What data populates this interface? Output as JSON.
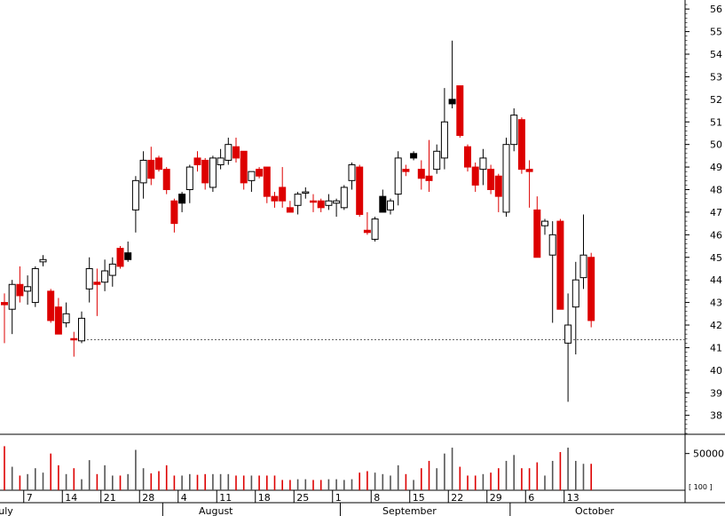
{
  "chart_data": {
    "type": "candlestick",
    "title": "",
    "price_axis": {
      "ticks": [
        38,
        39,
        40,
        41,
        42,
        43,
        44,
        45,
        46,
        47,
        48,
        49,
        50,
        51,
        52,
        53,
        54,
        55,
        56
      ],
      "range": [
        37.2,
        56.4
      ],
      "position": "right"
    },
    "volume_axis": {
      "tick_label": "50000",
      "tick_value": 50000,
      "unit_label": "[ 100 ]",
      "range": [
        0,
        75000
      ]
    },
    "reference_line": {
      "value": 41.35,
      "style": "dotted"
    },
    "x_tick_labels": [
      "7",
      "14",
      "21",
      "28",
      "4",
      "11",
      "18",
      "25",
      "1",
      "8",
      "15",
      "22",
      "29",
      "6",
      "13"
    ],
    "month_labels": [
      "July",
      "August",
      "September",
      "October"
    ],
    "up_color": "#ffffff",
    "down_color": "#dd0000",
    "alt_color": "#000000",
    "candles": [
      {
        "o": 43.0,
        "h": 43.4,
        "l": 41.2,
        "c": 42.9,
        "v": 60000,
        "color": "red"
      },
      {
        "o": 42.7,
        "h": 44.0,
        "l": 41.6,
        "c": 43.8,
        "v": 32000,
        "color": "white"
      },
      {
        "o": 43.8,
        "h": 44.6,
        "l": 43.0,
        "c": 43.3,
        "v": 20000,
        "color": "red"
      },
      {
        "o": 43.5,
        "h": 44.2,
        "l": 42.9,
        "c": 43.7,
        "v": 22000,
        "color": "white"
      },
      {
        "o": 43.0,
        "h": 44.6,
        "l": 42.8,
        "c": 44.5,
        "v": 30000,
        "color": "white"
      },
      {
        "o": 44.8,
        "h": 45.1,
        "l": 44.6,
        "c": 44.9,
        "v": 24000,
        "color": "white"
      },
      {
        "o": 43.5,
        "h": 43.6,
        "l": 42.1,
        "c": 42.2,
        "v": 50000,
        "color": "red"
      },
      {
        "o": 42.8,
        "h": 43.2,
        "l": 41.6,
        "c": 41.6,
        "v": 34000,
        "color": "red"
      },
      {
        "o": 42.1,
        "h": 43.0,
        "l": 41.9,
        "c": 42.5,
        "v": 22000,
        "color": "white"
      },
      {
        "o": 41.4,
        "h": 41.7,
        "l": 40.6,
        "c": 41.4,
        "v": 30000,
        "color": "red"
      },
      {
        "o": 41.3,
        "h": 42.6,
        "l": 41.2,
        "c": 42.3,
        "v": 15000,
        "color": "white"
      },
      {
        "o": 43.6,
        "h": 45.0,
        "l": 43.0,
        "c": 44.5,
        "v": 41000,
        "color": "white"
      },
      {
        "o": 43.9,
        "h": 44.5,
        "l": 42.4,
        "c": 43.8,
        "v": 22000,
        "color": "red"
      },
      {
        "o": 43.9,
        "h": 44.9,
        "l": 43.5,
        "c": 44.4,
        "v": 34000,
        "color": "white"
      },
      {
        "o": 44.2,
        "h": 45.0,
        "l": 43.7,
        "c": 44.7,
        "v": 20000,
        "color": "white"
      },
      {
        "o": 45.4,
        "h": 45.5,
        "l": 44.5,
        "c": 44.6,
        "v": 20000,
        "color": "red"
      },
      {
        "o": 45.2,
        "h": 45.7,
        "l": 44.8,
        "c": 44.9,
        "v": 22000,
        "color": "black"
      },
      {
        "o": 47.1,
        "h": 48.6,
        "l": 46.1,
        "c": 48.4,
        "v": 55000,
        "color": "white"
      },
      {
        "o": 48.3,
        "h": 49.7,
        "l": 47.6,
        "c": 49.3,
        "v": 30000,
        "color": "white"
      },
      {
        "o": 49.3,
        "h": 49.9,
        "l": 48.2,
        "c": 48.5,
        "v": 23000,
        "color": "red"
      },
      {
        "o": 49.4,
        "h": 49.5,
        "l": 48.8,
        "c": 48.9,
        "v": 26000,
        "color": "red"
      },
      {
        "o": 48.9,
        "h": 49.0,
        "l": 47.8,
        "c": 48.0,
        "v": 34000,
        "color": "red"
      },
      {
        "o": 47.5,
        "h": 47.6,
        "l": 46.1,
        "c": 46.5,
        "v": 20000,
        "color": "red"
      },
      {
        "o": 47.4,
        "h": 47.9,
        "l": 47.0,
        "c": 47.8,
        "v": 20000,
        "color": "black"
      },
      {
        "o": 48.0,
        "h": 49.1,
        "l": 47.4,
        "c": 49.0,
        "v": 22000,
        "color": "white"
      },
      {
        "o": 49.1,
        "h": 49.7,
        "l": 48.8,
        "c": 49.4,
        "v": 21000,
        "color": "red"
      },
      {
        "o": 48.3,
        "h": 49.4,
        "l": 48.0,
        "c": 49.3,
        "v": 22000,
        "color": "red"
      },
      {
        "o": 48.1,
        "h": 49.5,
        "l": 47.9,
        "c": 49.4,
        "v": 22000,
        "color": "white"
      },
      {
        "o": 49.4,
        "h": 49.8,
        "l": 48.9,
        "c": 49.1,
        "v": 22000,
        "color": "white"
      },
      {
        "o": 49.3,
        "h": 50.3,
        "l": 49.1,
        "c": 50.0,
        "v": 22000,
        "color": "white"
      },
      {
        "o": 49.9,
        "h": 50.3,
        "l": 49.2,
        "c": 49.4,
        "v": 20000,
        "color": "red"
      },
      {
        "o": 49.7,
        "h": 49.7,
        "l": 48.0,
        "c": 48.3,
        "v": 20000,
        "color": "red"
      },
      {
        "o": 48.4,
        "h": 48.7,
        "l": 47.9,
        "c": 48.8,
        "v": 20000,
        "color": "white"
      },
      {
        "o": 48.9,
        "h": 49.0,
        "l": 48.5,
        "c": 48.6,
        "v": 20000,
        "color": "red"
      },
      {
        "o": 49.0,
        "h": 49.0,
        "l": 47.4,
        "c": 47.7,
        "v": 20000,
        "color": "red"
      },
      {
        "o": 47.7,
        "h": 47.9,
        "l": 47.2,
        "c": 47.5,
        "v": 20000,
        "color": "red"
      },
      {
        "o": 48.1,
        "h": 49.0,
        "l": 47.2,
        "c": 47.5,
        "v": 14000,
        "color": "red"
      },
      {
        "o": 47.2,
        "h": 47.5,
        "l": 47.0,
        "c": 47.0,
        "v": 14000,
        "color": "red"
      },
      {
        "o": 47.3,
        "h": 47.9,
        "l": 46.9,
        "c": 47.8,
        "v": 15000,
        "color": "white"
      },
      {
        "o": 47.9,
        "h": 48.1,
        "l": 47.6,
        "c": 47.9,
        "v": 15000,
        "color": "white"
      },
      {
        "o": 47.5,
        "h": 47.8,
        "l": 47.0,
        "c": 47.5,
        "v": 14000,
        "color": "red"
      },
      {
        "o": 47.5,
        "h": 47.6,
        "l": 47.0,
        "c": 47.2,
        "v": 14000,
        "color": "red"
      },
      {
        "o": 47.3,
        "h": 47.8,
        "l": 47.1,
        "c": 47.5,
        "v": 15000,
        "color": "white"
      },
      {
        "o": 47.5,
        "h": 47.6,
        "l": 46.8,
        "c": 47.4,
        "v": 15000,
        "color": "white"
      },
      {
        "o": 47.2,
        "h": 48.2,
        "l": 47.1,
        "c": 48.1,
        "v": 14000,
        "color": "white"
      },
      {
        "o": 48.4,
        "h": 49.2,
        "l": 48.0,
        "c": 49.1,
        "v": 15000,
        "color": "white"
      },
      {
        "o": 49.0,
        "h": 49.1,
        "l": 46.8,
        "c": 46.9,
        "v": 24000,
        "color": "red"
      },
      {
        "o": 46.2,
        "h": 47.0,
        "l": 46.0,
        "c": 46.1,
        "v": 26000,
        "color": "red"
      },
      {
        "o": 45.8,
        "h": 46.8,
        "l": 45.7,
        "c": 46.7,
        "v": 24000,
        "color": "white"
      },
      {
        "o": 47.7,
        "h": 48.0,
        "l": 47.0,
        "c": 47.0,
        "v": 22000,
        "color": "black"
      },
      {
        "o": 47.1,
        "h": 47.6,
        "l": 46.9,
        "c": 47.5,
        "v": 20000,
        "color": "white"
      },
      {
        "o": 47.8,
        "h": 49.7,
        "l": 47.3,
        "c": 49.4,
        "v": 34000,
        "color": "white"
      },
      {
        "o": 48.9,
        "h": 49.1,
        "l": 48.6,
        "c": 48.8,
        "v": 22000,
        "color": "red"
      },
      {
        "o": 49.6,
        "h": 49.7,
        "l": 49.3,
        "c": 49.4,
        "v": 14000,
        "color": "black"
      },
      {
        "o": 48.9,
        "h": 49.3,
        "l": 48.0,
        "c": 48.5,
        "v": 30000,
        "color": "red"
      },
      {
        "o": 48.4,
        "h": 50.2,
        "l": 47.9,
        "c": 48.6,
        "v": 40000,
        "color": "red"
      },
      {
        "o": 48.9,
        "h": 50.0,
        "l": 48.7,
        "c": 49.7,
        "v": 30000,
        "color": "white"
      },
      {
        "o": 49.4,
        "h": 52.5,
        "l": 48.9,
        "c": 51.0,
        "v": 50000,
        "color": "white"
      },
      {
        "o": 52.0,
        "h": 54.6,
        "l": 51.6,
        "c": 51.8,
        "v": 58000,
        "color": "black"
      },
      {
        "o": 52.6,
        "h": 52.6,
        "l": 50.3,
        "c": 50.4,
        "v": 32000,
        "color": "red"
      },
      {
        "o": 49.9,
        "h": 50.0,
        "l": 48.8,
        "c": 49.0,
        "v": 20000,
        "color": "red"
      },
      {
        "o": 49.0,
        "h": 49.2,
        "l": 47.9,
        "c": 48.2,
        "v": 20000,
        "color": "red"
      },
      {
        "o": 48.9,
        "h": 49.8,
        "l": 48.2,
        "c": 49.4,
        "v": 22000,
        "color": "white"
      },
      {
        "o": 48.9,
        "h": 49.1,
        "l": 47.8,
        "c": 48.0,
        "v": 24000,
        "color": "red"
      },
      {
        "o": 48.6,
        "h": 48.7,
        "l": 47.0,
        "c": 47.7,
        "v": 30000,
        "color": "red"
      },
      {
        "o": 47.0,
        "h": 50.3,
        "l": 46.8,
        "c": 50.0,
        "v": 40000,
        "color": "white"
      },
      {
        "o": 50.0,
        "h": 51.6,
        "l": 49.7,
        "c": 51.3,
        "v": 48000,
        "color": "white"
      },
      {
        "o": 51.1,
        "h": 51.2,
        "l": 48.7,
        "c": 48.9,
        "v": 30000,
        "color": "red"
      },
      {
        "o": 48.9,
        "h": 49.3,
        "l": 47.2,
        "c": 48.8,
        "v": 30000,
        "color": "red"
      },
      {
        "o": 47.1,
        "h": 47.7,
        "l": 45.1,
        "c": 45.0,
        "v": 38000,
        "color": "red"
      },
      {
        "o": 46.4,
        "h": 46.7,
        "l": 46.0,
        "c": 46.6,
        "v": 20000,
        "color": "white"
      },
      {
        "o": 45.1,
        "h": 46.6,
        "l": 42.1,
        "c": 46.0,
        "v": 40000,
        "color": "white"
      },
      {
        "o": 46.6,
        "h": 46.7,
        "l": 42.7,
        "c": 42.7,
        "v": 52000,
        "color": "red"
      },
      {
        "o": 41.2,
        "h": 43.4,
        "l": 38.6,
        "c": 42.0,
        "v": 58000,
        "color": "white"
      },
      {
        "o": 42.8,
        "h": 44.8,
        "l": 40.7,
        "c": 44.0,
        "v": 40000,
        "color": "white"
      },
      {
        "o": 44.1,
        "h": 46.9,
        "l": 43.6,
        "c": 45.1,
        "v": 36000,
        "color": "white"
      },
      {
        "o": 45.0,
        "h": 45.2,
        "l": 41.9,
        "c": 42.2,
        "v": 36000,
        "color": "red"
      }
    ]
  }
}
